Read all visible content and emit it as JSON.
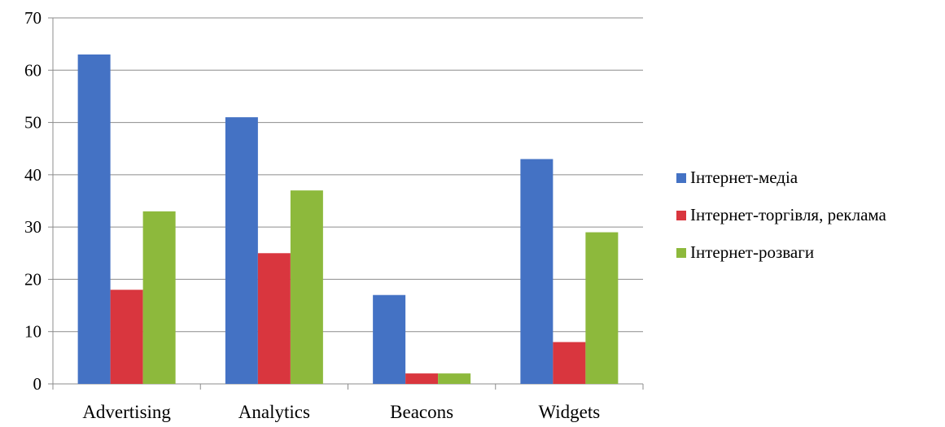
{
  "chart_data": {
    "type": "bar",
    "title": "",
    "xlabel": "",
    "ylabel": "",
    "categories": [
      "Advertising",
      "Analytics",
      "Beacons",
      "Widgets"
    ],
    "ylim": [
      0,
      70
    ],
    "yticks": [
      0,
      10,
      20,
      30,
      40,
      50,
      60,
      70
    ],
    "grid": true,
    "legend_position": "right",
    "series": [
      {
        "name": "Інтернет-медіа",
        "color": "#4472C4",
        "values": [
          63,
          51,
          17,
          43
        ]
      },
      {
        "name": "Інтернет-торгівля, реклама",
        "color": "#D9363E",
        "values": [
          18,
          25,
          2,
          8
        ]
      },
      {
        "name": "Інтернет-розваги",
        "color": "#8DB93C",
        "values": [
          33,
          37,
          2,
          29
        ]
      }
    ]
  }
}
